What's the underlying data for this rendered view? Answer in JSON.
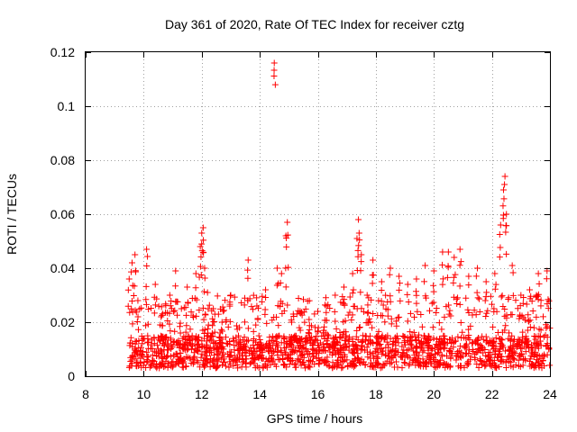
{
  "chart_data": {
    "type": "scatter",
    "title": "Day 361 of 2020, Rate Of TEC Index for receiver cztg",
    "xlabel": "GPS time / hours",
    "ylabel": "ROTI / TECUs",
    "xlim": [
      8,
      24
    ],
    "ylim": [
      0,
      0.12
    ],
    "xticks": [
      8,
      10,
      12,
      14,
      16,
      18,
      20,
      22,
      24
    ],
    "xtick_labels": [
      "8",
      "10",
      "12",
      "14",
      "16",
      "18",
      "20",
      "22",
      "24"
    ],
    "yticks": [
      0,
      0.02,
      0.04,
      0.06,
      0.08,
      0.1,
      0.12
    ],
    "ytick_labels": [
      "0",
      "0.02",
      "0.04",
      "0.06",
      "0.08",
      "0.1",
      "0.12"
    ],
    "grid": true,
    "marker": "+",
    "color": "#ff0000",
    "series": [
      {
        "name": "ROTI",
        "x": [
          9.5,
          9.6,
          9.7,
          9.8,
          10.1,
          10.4,
          10.6,
          10.9,
          11.1,
          11.3,
          11.5,
          11.8,
          11.95,
          12.0,
          12.05,
          12.1,
          12.2,
          12.4,
          12.7,
          13.0,
          13.3,
          13.6,
          13.9,
          14.2,
          14.5,
          14.6,
          14.75,
          14.9,
          14.95,
          15.1,
          15.4,
          15.7,
          16.0,
          16.3,
          16.6,
          16.9,
          17.2,
          17.35,
          17.4,
          17.5,
          17.7,
          17.9,
          18.2,
          18.5,
          18.8,
          19.1,
          19.4,
          19.7,
          20.0,
          20.3,
          20.5,
          20.7,
          20.9,
          21.2,
          21.5,
          21.8,
          22.1,
          22.3,
          22.4,
          22.45,
          22.5,
          22.7,
          23.0,
          23.3,
          23.6,
          23.9
        ],
        "y": [
          0.036,
          0.042,
          0.045,
          0.028,
          0.047,
          0.034,
          0.022,
          0.03,
          0.039,
          0.025,
          0.033,
          0.038,
          0.048,
          0.053,
          0.055,
          0.04,
          0.031,
          0.025,
          0.02,
          0.03,
          0.018,
          0.043,
          0.026,
          0.032,
          0.116,
          0.04,
          0.038,
          0.052,
          0.057,
          0.02,
          0.017,
          0.021,
          0.024,
          0.026,
          0.03,
          0.033,
          0.038,
          0.051,
          0.058,
          0.045,
          0.03,
          0.043,
          0.035,
          0.04,
          0.037,
          0.034,
          0.036,
          0.041,
          0.039,
          0.046,
          0.046,
          0.044,
          0.047,
          0.037,
          0.04,
          0.035,
          0.038,
          0.056,
          0.069,
          0.074,
          0.06,
          0.041,
          0.03,
          0.032,
          0.038,
          0.039
        ]
      }
    ],
    "dense_band": {
      "x_range": [
        9.5,
        24
      ],
      "y_range": [
        0.003,
        0.03
      ],
      "typical_y": 0.01
    }
  }
}
